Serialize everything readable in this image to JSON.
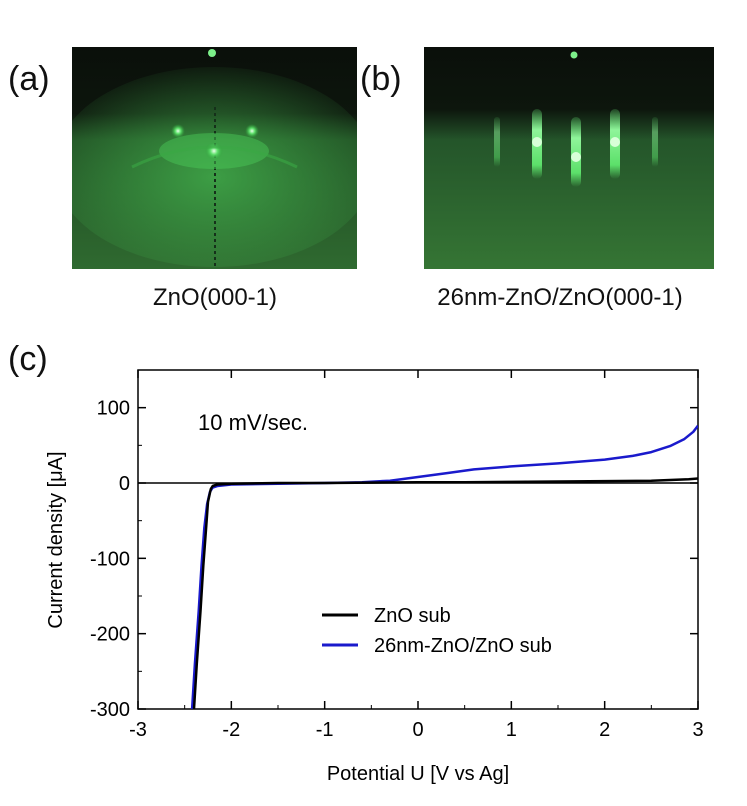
{
  "panels": {
    "a": {
      "label": "(a)",
      "caption": "ZnO(000-1)"
    },
    "b": {
      "label": "(b)",
      "caption": "26nm-ZnO/ZnO(000-1)"
    },
    "c": {
      "label": "(c)"
    }
  },
  "colors": {
    "rheed_bg": "#1c2b1c",
    "rheed_green": "#39d34a",
    "ZnO sub": "#000000",
    "26nm-ZnO/ZnO sub": "#1a1acc"
  },
  "chart_data": {
    "type": "line",
    "xlabel": "Potential U [V vs Ag]",
    "ylabel": "Current density [μA]",
    "annotation": "10 mV/sec.",
    "xlim": [
      -3,
      3
    ],
    "ylim": [
      -300,
      150
    ],
    "xticks": [
      "-3",
      "-2",
      "-1",
      "0",
      "1",
      "2",
      "3"
    ],
    "yticks": [
      "-300",
      "-200",
      "-100",
      "0",
      "100"
    ],
    "ytick_values": [
      -300,
      -200,
      -100,
      0,
      100
    ],
    "legend_position": "lower-right",
    "series": [
      {
        "name": "ZnO sub",
        "color": "#000000",
        "x": [
          -2.4,
          -2.37,
          -2.33,
          -2.3,
          -2.27,
          -2.25,
          -2.22,
          -2.2,
          -2.15,
          -2.0,
          -1.5,
          -1.0,
          -0.5,
          0.0,
          0.5,
          1.0,
          1.5,
          2.0,
          2.5,
          2.9,
          3.0
        ],
        "y": [
          -300,
          -240,
          -170,
          -110,
          -60,
          -25,
          -8,
          -4,
          -2,
          -1,
          0,
          0,
          0.5,
          1,
          1,
          1.5,
          2,
          2.5,
          3,
          5,
          6
        ]
      },
      {
        "name": "26nm-ZnO/ZnO sub",
        "color": "#1a1acc",
        "x": [
          -2.42,
          -2.39,
          -2.35,
          -2.32,
          -2.29,
          -2.26,
          -2.23,
          -2.2,
          -2.15,
          -2.0,
          -1.5,
          -1.0,
          -0.6,
          -0.3,
          0.0,
          0.3,
          0.6,
          1.0,
          1.5,
          2.0,
          2.3,
          2.5,
          2.7,
          2.85,
          2.95,
          3.0
        ],
        "y": [
          -300,
          -240,
          -170,
          -110,
          -60,
          -28,
          -12,
          -6,
          -4,
          -2,
          -1,
          0,
          1,
          3,
          8,
          13,
          18,
          22,
          26,
          31,
          36,
          41,
          49,
          58,
          68,
          76
        ]
      }
    ]
  }
}
